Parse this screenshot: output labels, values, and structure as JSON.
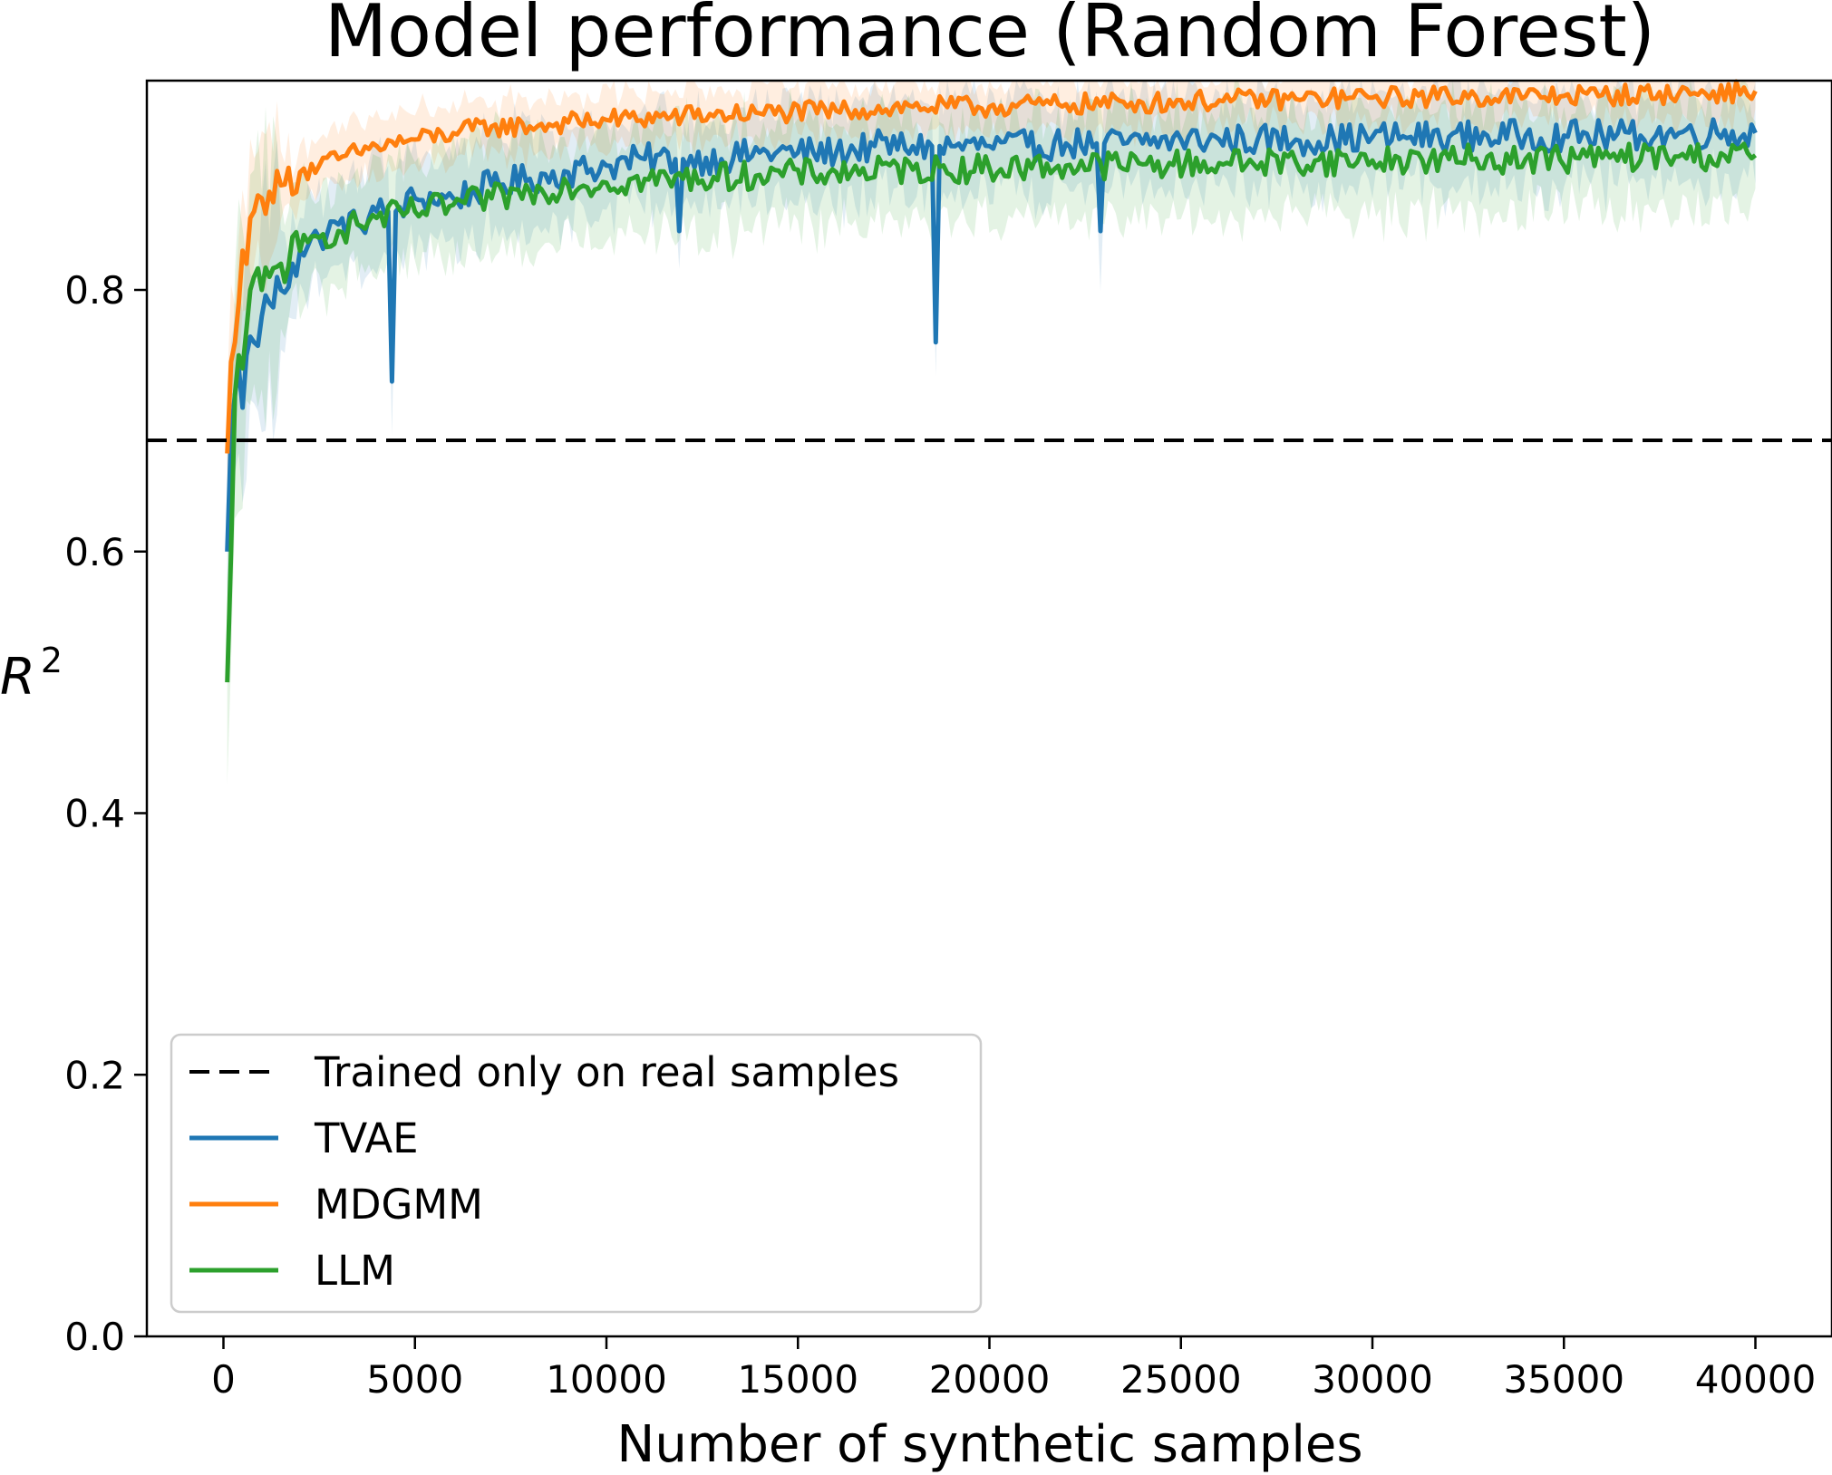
{
  "chart_data": {
    "type": "line",
    "title": "Model performance (Random Forest)",
    "xlabel": "Number of synthetic samples",
    "ylabel_base": "R",
    "ylabel_sup": "2",
    "xlim": [
      -2000,
      42000
    ],
    "ylim": [
      0.0,
      0.96
    ],
    "x_ticks": [
      0,
      5000,
      10000,
      15000,
      20000,
      25000,
      30000,
      35000,
      40000
    ],
    "y_ticks": [
      0.0,
      0.2,
      0.4,
      0.6,
      0.8
    ],
    "x_tick_labels": [
      "0",
      "5000",
      "10000",
      "15000",
      "20000",
      "25000",
      "30000",
      "35000",
      "40000"
    ],
    "y_tick_labels": [
      "0.0",
      "0.2",
      "0.4",
      "0.6",
      "0.8"
    ],
    "grid": false,
    "legend_position": "bottom-left",
    "baseline": {
      "name": "Trained only on real samples",
      "value": 0.685,
      "color": "#000000",
      "style": "dashed"
    },
    "series": [
      {
        "name": "TVAE",
        "color": "#1f77b4",
        "x": [
          100,
          200,
          300,
          400,
          500,
          600,
          800,
          1000,
          1200,
          1500,
          1800,
          2000,
          2500,
          3000,
          3500,
          4000,
          4300,
          4400,
          4500,
          5000,
          6000,
          7000,
          8000,
          9000,
          10000,
          11000,
          11800,
          11900,
          12000,
          13000,
          14000,
          15000,
          16000,
          17000,
          18000,
          18500,
          18600,
          18700,
          19000,
          20000,
          21000,
          22000,
          22800,
          22900,
          23000,
          24000,
          25000,
          26000,
          27000,
          28000,
          29000,
          30000,
          31000,
          32000,
          33000,
          34000,
          35000,
          36000,
          37000,
          38000,
          39000,
          40000
        ],
        "values": [
          0.6,
          0.69,
          0.72,
          0.74,
          0.71,
          0.75,
          0.76,
          0.78,
          0.79,
          0.8,
          0.82,
          0.83,
          0.84,
          0.85,
          0.85,
          0.86,
          0.86,
          0.73,
          0.86,
          0.87,
          0.87,
          0.88,
          0.885,
          0.89,
          0.895,
          0.9,
          0.9,
          0.845,
          0.9,
          0.9,
          0.905,
          0.905,
          0.905,
          0.91,
          0.91,
          0.91,
          0.76,
          0.91,
          0.91,
          0.91,
          0.91,
          0.912,
          0.912,
          0.845,
          0.912,
          0.912,
          0.915,
          0.915,
          0.915,
          0.915,
          0.915,
          0.917,
          0.917,
          0.917,
          0.918,
          0.918,
          0.918,
          0.918,
          0.918,
          0.92,
          0.92,
          0.92
        ]
      },
      {
        "name": "MDGMM",
        "color": "#ff7f0e",
        "x": [
          100,
          200,
          300,
          400,
          500,
          600,
          700,
          800,
          1000,
          1200,
          1500,
          2000,
          2500,
          3000,
          3500,
          4000,
          5000,
          6000,
          7000,
          8000,
          9000,
          10000,
          12000,
          14000,
          16000,
          18000,
          20000,
          22000,
          24000,
          26000,
          28000,
          30000,
          32000,
          34000,
          36000,
          38000,
          40000
        ],
        "values": [
          0.675,
          0.745,
          0.76,
          0.79,
          0.83,
          0.82,
          0.855,
          0.86,
          0.87,
          0.875,
          0.88,
          0.89,
          0.895,
          0.9,
          0.905,
          0.91,
          0.915,
          0.92,
          0.925,
          0.925,
          0.928,
          0.93,
          0.933,
          0.935,
          0.937,
          0.94,
          0.94,
          0.942,
          0.943,
          0.945,
          0.946,
          0.947,
          0.948,
          0.948,
          0.949,
          0.95,
          0.952
        ]
      },
      {
        "name": "LLM",
        "color": "#2ca02c",
        "x": [
          100,
          200,
          300,
          400,
          500,
          600,
          700,
          800,
          1000,
          1200,
          1500,
          2000,
          2500,
          3000,
          3500,
          4000,
          5000,
          6000,
          7000,
          8000,
          9000,
          10000,
          12000,
          14000,
          16000,
          18000,
          20000,
          22000,
          24000,
          26000,
          28000,
          30000,
          32000,
          34000,
          36000,
          38000,
          40000
        ],
        "values": [
          0.5,
          0.6,
          0.72,
          0.75,
          0.74,
          0.77,
          0.8,
          0.81,
          0.8,
          0.81,
          0.82,
          0.83,
          0.84,
          0.845,
          0.85,
          0.855,
          0.86,
          0.865,
          0.87,
          0.875,
          0.88,
          0.882,
          0.885,
          0.888,
          0.89,
          0.892,
          0.893,
          0.895,
          0.896,
          0.897,
          0.898,
          0.899,
          0.9,
          0.9,
          0.901,
          0.902,
          0.903
        ]
      }
    ]
  }
}
